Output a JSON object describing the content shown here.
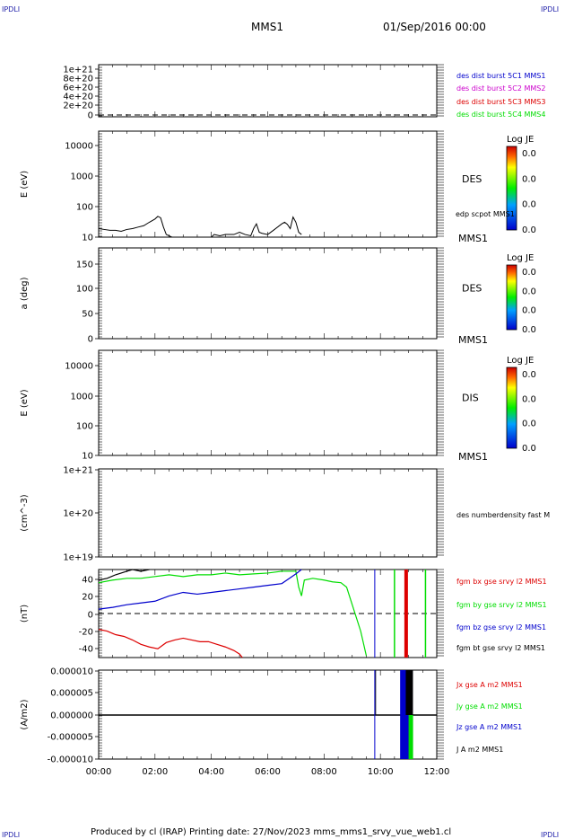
{
  "corner_mark": "IPDLI",
  "header": {
    "spacecraft": "MMS1",
    "date": "01/Sep/2016 00:00"
  },
  "footer": "Produced by cl (IRAP)   Printing date: 27/Nov/2023   mms_mms1_srvy_vue_web1.cl",
  "colors": {
    "black": "#000000",
    "blue": "#0000cc",
    "magenta": "#cc00cc",
    "red": "#dd0000",
    "green": "#00dd00",
    "nav": "#2222aa"
  },
  "chart_data": [
    {
      "type": "line",
      "ytick_labels": [
        "1e+21",
        "8e+20",
        "6e+20",
        "4e+20",
        "2e+20",
        "0"
      ],
      "ylim": [
        0,
        1e+21
      ],
      "legend": [
        {
          "text": "des dist burst 5C1 MMS1",
          "color": "blue"
        },
        {
          "text": "des dist burst 5C2 MMS2",
          "color": "magenta"
        },
        {
          "text": "des dist burst 5C3 MMS3",
          "color": "red"
        },
        {
          "text": "des dist burst 5C4 MMS4",
          "color": "green"
        }
      ],
      "zero_line": true
    },
    {
      "type": "heatmap",
      "ylabel": "E (eV)",
      "ytick_labels": [
        "10000",
        "1000",
        "100",
        "10"
      ],
      "scale": "log",
      "ylim": [
        10,
        15000
      ],
      "label": "DES",
      "sc_label": "MMS1",
      "line_label": "edp scpot MMS1",
      "colorbar": {
        "title": "Log JE",
        "ticks": [
          "0.0",
          "0.0",
          "0.0",
          "0.0"
        ]
      },
      "line_series": {
        "name": "edp scpot MMS1",
        "x": [
          0.0,
          0.2,
          0.4,
          0.6,
          0.8,
          1.0,
          1.2,
          1.4,
          1.6,
          1.8,
          2.0,
          2.1,
          2.2,
          2.3,
          2.4,
          2.6,
          3.0,
          3.5,
          4.0,
          4.1,
          4.3,
          4.5,
          4.8,
          5.0,
          5.2,
          5.4,
          5.5,
          5.6,
          5.7,
          5.8,
          6.0,
          6.2,
          6.5,
          6.6,
          6.7,
          6.8,
          6.9,
          7.0,
          7.1,
          7.2
        ],
        "y": [
          18,
          17,
          16,
          16,
          15,
          17,
          18,
          20,
          22,
          28,
          35,
          42,
          38,
          20,
          12,
          10,
          10,
          10,
          10,
          12,
          11,
          12,
          12,
          14,
          12,
          11,
          18,
          25,
          14,
          13,
          12,
          16,
          25,
          28,
          24,
          18,
          40,
          28,
          14,
          12
        ]
      }
    },
    {
      "type": "heatmap",
      "ylabel": "a (deg)",
      "ytick_labels": [
        "150",
        "100",
        "50",
        "0"
      ],
      "ylim": [
        0,
        180
      ],
      "label": "DES",
      "sc_label": "MMS1",
      "colorbar": {
        "title": "Log JE",
        "ticks": [
          "0.0",
          "0.0",
          "0.0",
          "0.0"
        ]
      }
    },
    {
      "type": "heatmap",
      "ylabel": "E (eV)",
      "ytick_labels": [
        "10000",
        "1000",
        "100",
        "10"
      ],
      "scale": "log",
      "ylim": [
        10,
        15000
      ],
      "label": "DIS",
      "sc_label": "MMS1",
      "colorbar": {
        "title": "Log JE",
        "ticks": [
          "0.0",
          "0.0",
          "0.0",
          "0.0"
        ]
      }
    },
    {
      "type": "line",
      "ylabel": "(cm^-3)",
      "ytick_labels": [
        "1e+21",
        "1e+20",
        "1e+19"
      ],
      "scale": "log",
      "ylim": [
        1e+19,
        1e+21
      ],
      "legend": [
        {
          "text": "des numberdensity fast M",
          "color": "black"
        }
      ]
    },
    {
      "type": "line",
      "ylabel": "(nT)",
      "ytick_labels": [
        "40",
        "20",
        "0",
        "-20",
        "-40"
      ],
      "ylim": [
        -50,
        50
      ],
      "zero_line": true,
      "legend": [
        {
          "text": "fgm bx gse srvy l2 MMS1",
          "color": "red"
        },
        {
          "text": "fgm by gse srvy l2 MMS1",
          "color": "green"
        },
        {
          "text": "fgm bz gse srvy l2 MMS1",
          "color": "blue"
        },
        {
          "text": "fgm bt gse srvy l2 MMS1",
          "color": "black"
        }
      ],
      "series": [
        {
          "name": "fgm bx gse srvy l2 MMS1",
          "color": "red",
          "x": [
            0.0,
            0.3,
            0.6,
            0.9,
            1.2,
            1.5,
            1.8,
            2.1,
            2.4,
            2.7,
            3.0,
            3.3,
            3.6,
            3.9,
            4.2,
            4.5,
            4.8,
            5.0,
            5.1
          ],
          "y": [
            -18,
            -20,
            -24,
            -26,
            -30,
            -35,
            -38,
            -40,
            -33,
            -30,
            -28,
            -30,
            -32,
            -32,
            -35,
            -38,
            -42,
            -46,
            -50
          ]
        },
        {
          "name": "fgm by gse srvy l2 MMS1",
          "color": "green",
          "x": [
            0.0,
            0.5,
            1.0,
            1.5,
            2.0,
            2.5,
            3.0,
            3.5,
            4.0,
            4.5,
            5.0,
            5.5,
            6.0,
            6.5,
            7.0,
            7.1,
            7.2,
            7.3,
            7.6,
            8.0,
            8.3,
            8.6,
            8.8,
            9.0,
            9.3,
            9.5
          ],
          "y": [
            35,
            38,
            40,
            40,
            42,
            44,
            42,
            44,
            44,
            46,
            44,
            45,
            46,
            48,
            48,
            30,
            20,
            38,
            40,
            38,
            36,
            35,
            30,
            10,
            -20,
            -48
          ]
        },
        {
          "name": "fgm bz gse srvy l2 MMS1",
          "color": "blue",
          "x": [
            0.0,
            0.5,
            1.0,
            1.5,
            2.0,
            2.5,
            3.0,
            3.5,
            4.0,
            4.5,
            5.0,
            5.5,
            6.0,
            6.5,
            7.0,
            7.2
          ],
          "y": [
            5,
            7,
            10,
            12,
            14,
            20,
            24,
            22,
            24,
            26,
            28,
            30,
            32,
            34,
            45,
            50
          ]
        },
        {
          "name": "fgm bt gse srvy l2 MMS1",
          "color": "black",
          "x": [
            0.0,
            0.3,
            0.6,
            0.9,
            1.2,
            1.5,
            1.8
          ],
          "y": [
            38,
            40,
            44,
            47,
            50,
            48,
            50
          ]
        }
      ]
    },
    {
      "type": "line",
      "ylabel": "(A/m2)",
      "ytick_labels": [
        "0.000010",
        "0.000005",
        "0.000000",
        "-0.000005",
        "-0.000010"
      ],
      "ylim": [
        -1e-05,
        1e-05
      ],
      "xtick_labels": [
        "00:00",
        "02:00",
        "04:00",
        "06:00",
        "08:00",
        "10:00",
        "12:00"
      ],
      "xlim": [
        0,
        12
      ],
      "legend": [
        {
          "text": "Jx gse A m2 MMS1",
          "color": "red"
        },
        {
          "text": "Jy gse A m2 MMS1",
          "color": "green"
        },
        {
          "text": "Jz gse A m2 MMS1",
          "color": "blue"
        },
        {
          "text": "J A m2 MMS1",
          "color": "black"
        }
      ]
    }
  ]
}
